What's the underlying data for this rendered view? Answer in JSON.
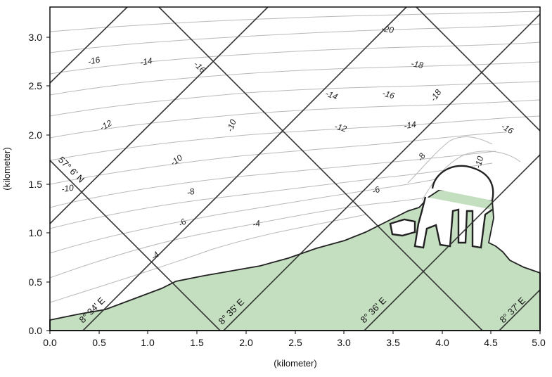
{
  "map": {
    "x_axis": {
      "label": "(kilometer)",
      "range": [
        0.0,
        5.0
      ],
      "ticks": [
        "0.0",
        "0.5",
        "1.0",
        "1.5",
        "2.0",
        "2.5",
        "3.0",
        "3.5",
        "4.0",
        "4.5",
        "5.0"
      ]
    },
    "y_axis": {
      "label": "(kilometer)",
      "range": [
        0.0,
        3.3
      ],
      "ticks": [
        "0.0",
        "0.5",
        "1.0",
        "1.5",
        "2.0",
        "2.5",
        "3.0"
      ]
    },
    "grid_labels": {
      "latitude": "57° 6' N",
      "longitudes": [
        "8° 34' E",
        "8° 35' E",
        "8° 36' E",
        "8° 37' E"
      ]
    },
    "depth_labels": [
      "-16",
      "-14",
      "-16",
      "-20",
      "-18",
      "-12",
      "-10",
      "-14",
      "-12",
      "-16",
      "-14",
      "-18",
      "-16",
      "-10",
      "-10",
      "-8",
      "-10",
      "-8",
      "-6",
      "-6",
      "-4",
      "-4"
    ],
    "colors": {
      "land": "#c4dfc0",
      "contour": "#b9b9b9",
      "grid": "#333333",
      "frame": "#000000"
    }
  }
}
